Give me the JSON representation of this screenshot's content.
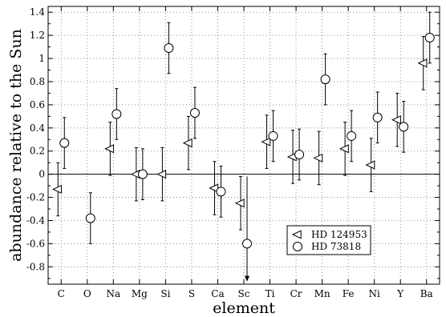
{
  "chart_data": {
    "type": "scatter",
    "xlabel": "element",
    "ylabel": "abundance relative to the Sun",
    "categories": [
      "C",
      "O",
      "Na",
      "Mg",
      "Si",
      "S",
      "Ca",
      "Sc",
      "Ti",
      "Cr",
      "Mn",
      "Fe",
      "Ni",
      "Y",
      "Ba"
    ],
    "ylim": [
      -0.95,
      1.45
    ],
    "yticks": [
      "-0.8",
      "-0.6",
      "-0.4",
      "-0.2",
      "0",
      "0.2",
      "0.4",
      "0.6",
      "0.8",
      "1",
      "1.2",
      "1.4"
    ],
    "grid": true,
    "zero_line": true,
    "legend_position": "lower-right",
    "series": [
      {
        "name": "HD 124953",
        "marker": "triangle-left",
        "points": [
          {
            "x": "C",
            "y": -0.13,
            "err_low": 0.23,
            "err_high": 0.23
          },
          {
            "x": "Na",
            "y": 0.22,
            "err_low": 0.23,
            "err_high": 0.23
          },
          {
            "x": "Mg",
            "y": 0.0,
            "err_low": 0.23,
            "err_high": 0.23
          },
          {
            "x": "Si",
            "y": 0.0,
            "err_low": 0.23,
            "err_high": 0.23
          },
          {
            "x": "S",
            "y": 0.27,
            "err_low": 0.23,
            "err_high": 0.23
          },
          {
            "x": "Ca",
            "y": -0.12,
            "err_low": 0.23,
            "err_high": 0.23
          },
          {
            "x": "Sc",
            "y": -0.25,
            "err_low": 0.23,
            "err_high": 0.23
          },
          {
            "x": "Ti",
            "y": 0.28,
            "err_low": 0.23,
            "err_high": 0.23
          },
          {
            "x": "Cr",
            "y": 0.15,
            "err_low": 0.23,
            "err_high": 0.23
          },
          {
            "x": "Mn",
            "y": 0.14,
            "err_low": 0.23,
            "err_high": 0.23
          },
          {
            "x": "Fe",
            "y": 0.22,
            "err_low": 0.23,
            "err_high": 0.23
          },
          {
            "x": "Ni",
            "y": 0.08,
            "err_low": 0.23,
            "err_high": 0.23
          },
          {
            "x": "Y",
            "y": 0.47,
            "err_low": 0.23,
            "err_high": 0.23
          },
          {
            "x": "Ba",
            "y": 0.96,
            "err_low": 0.23,
            "err_high": 0.23
          }
        ]
      },
      {
        "name": "HD 73818",
        "marker": "circle",
        "points": [
          {
            "x": "C",
            "y": 0.27,
            "err_low": 0.22,
            "err_high": 0.22
          },
          {
            "x": "O",
            "y": -0.38,
            "err_low": 0.22,
            "err_high": 0.22
          },
          {
            "x": "Na",
            "y": 0.52,
            "err_low": 0.22,
            "err_high": 0.22
          },
          {
            "x": "Mg",
            "y": 0.0,
            "err_low": 0.22,
            "err_high": 0.22
          },
          {
            "x": "Si",
            "y": 1.09,
            "err_low": 0.22,
            "err_high": 0.22
          },
          {
            "x": "S",
            "y": 0.53,
            "err_low": 0.22,
            "err_high": 0.22
          },
          {
            "x": "Ca",
            "y": -0.15,
            "err_low": 0.22,
            "err_high": 0.22
          },
          {
            "x": "Sc",
            "y": -0.6,
            "upper_limit": true
          },
          {
            "x": "Ti",
            "y": 0.33,
            "err_low": 0.22,
            "err_high": 0.22
          },
          {
            "x": "Cr",
            "y": 0.17,
            "err_low": 0.22,
            "err_high": 0.22
          },
          {
            "x": "Mn",
            "y": 0.82,
            "err_low": 0.22,
            "err_high": 0.22
          },
          {
            "x": "Fe",
            "y": 0.33,
            "err_low": 0.22,
            "err_high": 0.22
          },
          {
            "x": "Ni",
            "y": 0.49,
            "err_low": 0.22,
            "err_high": 0.22
          },
          {
            "x": "Y",
            "y": 0.41,
            "err_low": 0.22,
            "err_high": 0.22
          },
          {
            "x": "Ba",
            "y": 1.18,
            "err_low": 0.22,
            "err_high": 0.22
          }
        ]
      }
    ]
  }
}
